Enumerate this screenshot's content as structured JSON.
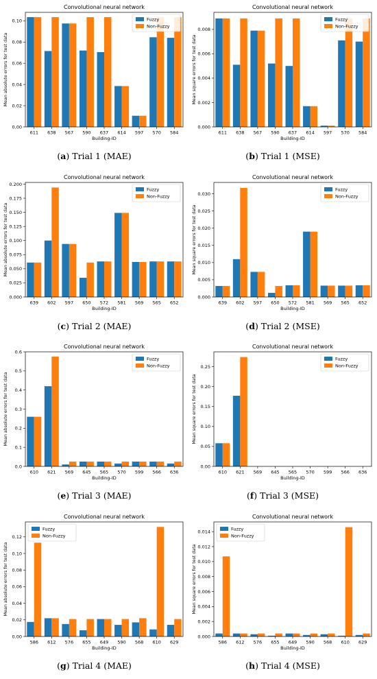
{
  "colors": {
    "fuzzy": "#1f77b4",
    "nonfuzzy": "#ff7f0e"
  },
  "chart_data": [
    {
      "type": "bar",
      "title": "Convolutional neural network",
      "xlabel": "Building-ID",
      "ylabel": "Mean absolute errors for test data",
      "categories": [
        "611",
        "638",
        "567",
        "590",
        "637",
        "614",
        "597",
        "570",
        "584"
      ],
      "series": [
        {
          "name": "Fuzzy",
          "values": [
            0.1035,
            0.0715,
            0.0975,
            0.072,
            0.0705,
            0.0385,
            0.0105,
            0.0845,
            0.084
          ]
        },
        {
          "name": "Non-Fuzzy",
          "values": [
            0.1035,
            0.1035,
            0.0975,
            0.1035,
            0.1035,
            0.0385,
            0.0105,
            0.1035,
            0.1035
          ]
        }
      ],
      "ylim": [
        0,
        0.108
      ],
      "yticks": [
        "0.00",
        "0.02",
        "0.04",
        "0.06",
        "0.08",
        "0.10"
      ],
      "legend": "top-right",
      "caption_letter": "(a)",
      "caption_text": " Trial 1 (MAE)"
    },
    {
      "type": "bar",
      "title": "Convolutional neural network",
      "xlabel": "Building-ID",
      "ylabel": "Mean square errors for test data",
      "categories": [
        "611",
        "638",
        "567",
        "590",
        "637",
        "614",
        "597",
        "570",
        "584"
      ],
      "series": [
        {
          "name": "Fuzzy",
          "values": [
            0.0089,
            0.0051,
            0.0079,
            0.0052,
            0.005,
            0.0017,
            0.0001,
            0.0071,
            0.007
          ]
        },
        {
          "name": "Non-Fuzzy",
          "values": [
            0.0089,
            0.0089,
            0.0079,
            0.0089,
            0.0089,
            0.0017,
            0.0001,
            0.0089,
            0.0089
          ]
        }
      ],
      "ylim": [
        0,
        0.0094
      ],
      "yticks": [
        "0.000",
        "0.002",
        "0.004",
        "0.006",
        "0.008"
      ],
      "legend": "top-right",
      "caption_letter": "(b)",
      "caption_text": " Trial 1 (MSE)"
    },
    {
      "type": "bar",
      "title": "Convolutional neural network",
      "xlabel": "Building-ID",
      "ylabel": "Mean absolute errors for test data",
      "categories": [
        "639",
        "602",
        "597",
        "650",
        "572",
        "581",
        "569",
        "565",
        "652"
      ],
      "series": [
        {
          "name": "Fuzzy",
          "values": [
            0.061,
            0.1,
            0.094,
            0.034,
            0.063,
            0.149,
            0.062,
            0.063,
            0.063
          ]
        },
        {
          "name": "Non-Fuzzy",
          "values": [
            0.061,
            0.194,
            0.094,
            0.061,
            0.063,
            0.149,
            0.062,
            0.063,
            0.063
          ]
        }
      ],
      "ylim": [
        0,
        0.203
      ],
      "yticks": [
        "0.000",
        "0.025",
        "0.050",
        "0.075",
        "0.100",
        "0.125",
        "0.150",
        "0.175",
        "0.200"
      ],
      "legend": "top-right",
      "caption_letter": "(c)",
      "caption_text": " Trial 2 (MAE)"
    },
    {
      "type": "bar",
      "title": "Convolutional neural network",
      "xlabel": "Building-ID",
      "ylabel": "Mean square errors for test data",
      "categories": [
        "639",
        "602",
        "597",
        "650",
        "572",
        "581",
        "569",
        "565",
        "652"
      ],
      "series": [
        {
          "name": "Fuzzy",
          "values": [
            0.0032,
            0.011,
            0.0073,
            0.0012,
            0.0034,
            0.019,
            0.0033,
            0.0033,
            0.0034
          ]
        },
        {
          "name": "Non-Fuzzy",
          "values": [
            0.0032,
            0.0317,
            0.0073,
            0.0032,
            0.0034,
            0.019,
            0.0033,
            0.0033,
            0.0034
          ]
        }
      ],
      "ylim": [
        0,
        0.0333
      ],
      "yticks": [
        "0.000",
        "0.005",
        "0.010",
        "0.015",
        "0.020",
        "0.025",
        "0.030"
      ],
      "legend": "top-right",
      "caption_letter": "(d)",
      "caption_text": " Trial 2 (MSE)"
    },
    {
      "type": "bar",
      "title": "Convolutional neural network",
      "xlabel": "Building-ID",
      "ylabel": "Mean absolute errors for test data",
      "categories": [
        "610",
        "621",
        "569",
        "645",
        "565",
        "570",
        "599",
        "566",
        "636"
      ],
      "series": [
        {
          "name": "Fuzzy",
          "values": [
            0.26,
            0.42,
            0.01,
            0.025,
            0.025,
            0.015,
            0.025,
            0.025,
            0.015
          ]
        },
        {
          "name": "Non-Fuzzy",
          "values": [
            0.26,
            0.575,
            0.025,
            0.025,
            0.025,
            0.025,
            0.025,
            0.025,
            0.025
          ]
        }
      ],
      "ylim": [
        0,
        0.6
      ],
      "yticks": [
        "0.0",
        "0.1",
        "0.2",
        "0.3",
        "0.4",
        "0.5",
        "0.6"
      ],
      "legend": "top-right",
      "caption_letter": "(e)",
      "caption_text": " Trial 3 (MAE)"
    },
    {
      "type": "bar",
      "title": "Convolutional neural network",
      "xlabel": "Building-ID",
      "ylabel": "Mean square errors for test data",
      "categories": [
        "610",
        "621",
        "569",
        "645",
        "565",
        "570",
        "599",
        "566",
        "636"
      ],
      "series": [
        {
          "name": "Fuzzy",
          "values": [
            0.058,
            0.177,
            0,
            0,
            0,
            0,
            0,
            0,
            0
          ]
        },
        {
          "name": "Non-Fuzzy",
          "values": [
            0.058,
            0.274,
            0,
            0,
            0,
            0,
            0,
            0,
            0
          ]
        }
      ],
      "ylim": [
        0,
        0.287
      ],
      "yticks": [
        "0.00",
        "0.05",
        "0.10",
        "0.15",
        "0.20",
        "0.25"
      ],
      "legend": "top-right",
      "caption_letter": "(f)",
      "caption_text": " Trial 3 (MSE)"
    },
    {
      "type": "bar",
      "title": "Convolutional neural network",
      "xlabel": "Building-ID",
      "ylabel": "Mean absolute errors for test data",
      "categories": [
        "586",
        "612",
        "576",
        "655",
        "649",
        "590",
        "568",
        "610",
        "629"
      ],
      "series": [
        {
          "name": "Fuzzy",
          "values": [
            0.0175,
            0.022,
            0.015,
            0.0075,
            0.021,
            0.014,
            0.017,
            0.0085,
            0.014
          ]
        },
        {
          "name": "Non-Fuzzy",
          "values": [
            0.113,
            0.022,
            0.021,
            0.021,
            0.021,
            0.021,
            0.022,
            0.132,
            0.021
          ]
        }
      ],
      "ylim": [
        0,
        0.138
      ],
      "yticks": [
        "0.00",
        "0.02",
        "0.04",
        "0.06",
        "0.08",
        "0.10",
        "0.12"
      ],
      "legend": "top-left",
      "caption_letter": "(g)",
      "caption_text": " Trial 4 (MAE)"
    },
    {
      "type": "bar",
      "title": "Convolutional neural network",
      "xlabel": "Building-ID",
      "ylabel": "Mean square errors for test data",
      "categories": [
        "586",
        "612",
        "576",
        "655",
        "649",
        "590",
        "568",
        "610",
        "629"
      ],
      "series": [
        {
          "name": "Fuzzy",
          "values": [
            0.0004,
            0.0004,
            0.0003,
            0.0001,
            0.0004,
            0.0002,
            0.0003,
            0.0001,
            0.0002
          ]
        },
        {
          "name": "Non-Fuzzy",
          "values": [
            0.0107,
            0.0004,
            0.0004,
            0.0004,
            0.0004,
            0.0004,
            0.0004,
            0.0146,
            0.0004
          ]
        }
      ],
      "ylim": [
        0,
        0.0153
      ],
      "yticks": [
        "0.000",
        "0.002",
        "0.004",
        "0.006",
        "0.008",
        "0.010",
        "0.012",
        "0.014"
      ],
      "legend": "top-left",
      "caption_letter": "(h)",
      "caption_text": " Trial 4 (MSE)"
    }
  ]
}
